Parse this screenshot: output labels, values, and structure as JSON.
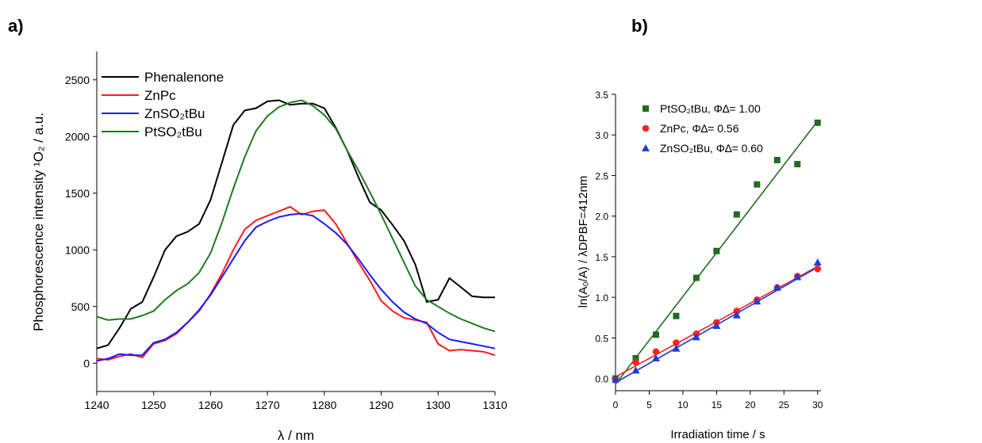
{
  "panels": {
    "a": "a)",
    "b": "b)"
  },
  "chart_data": [
    {
      "type": "line",
      "panel_label": "a)",
      "xlabel": "λ / nm",
      "ylabel": "Phosphorescence intensity ¹O₂ / a.u.",
      "xlim": [
        1240,
        1310
      ],
      "ylim": [
        -250,
        2750
      ],
      "xticks": [
        1240,
        1250,
        1260,
        1270,
        1280,
        1290,
        1300,
        1310
      ],
      "yticks": [
        0,
        500,
        1000,
        1500,
        2000,
        2500
      ],
      "legend_position": "top-left",
      "series": [
        {
          "name": "Phenalenone",
          "color": "#000000",
          "x": [
            1240,
            1242,
            1244,
            1246,
            1248,
            1250,
            1252,
            1254,
            1256,
            1258,
            1260,
            1262,
            1264,
            1266,
            1268,
            1270,
            1272,
            1274,
            1276,
            1278,
            1280,
            1282,
            1284,
            1286,
            1288,
            1290,
            1292,
            1294,
            1296,
            1298,
            1300,
            1302,
            1304,
            1306,
            1308,
            1310
          ],
          "y": [
            130,
            160,
            310,
            480,
            540,
            760,
            1000,
            1120,
            1160,
            1230,
            1440,
            1770,
            2100,
            2230,
            2250,
            2310,
            2320,
            2280,
            2290,
            2290,
            2250,
            2080,
            1880,
            1640,
            1420,
            1350,
            1220,
            1080,
            870,
            540,
            560,
            750,
            670,
            590,
            580,
            580
          ]
        },
        {
          "name": "ZnPc",
          "color": "#ff1a1a",
          "x": [
            1240,
            1242,
            1244,
            1246,
            1248,
            1250,
            1252,
            1254,
            1256,
            1258,
            1260,
            1262,
            1264,
            1266,
            1268,
            1270,
            1272,
            1274,
            1276,
            1278,
            1280,
            1282,
            1284,
            1286,
            1288,
            1290,
            1292,
            1294,
            1296,
            1298,
            1300,
            1302,
            1304,
            1306,
            1308,
            1310
          ],
          "y": [
            40,
            30,
            60,
            80,
            50,
            170,
            200,
            260,
            360,
            460,
            610,
            790,
            1000,
            1180,
            1260,
            1300,
            1340,
            1380,
            1310,
            1340,
            1350,
            1230,
            1060,
            890,
            730,
            550,
            460,
            400,
            380,
            360,
            170,
            110,
            120,
            110,
            100,
            70
          ]
        },
        {
          "name": "ZnSO₂tBu",
          "color": "#1a1aff",
          "x": [
            1240,
            1242,
            1244,
            1246,
            1248,
            1250,
            1252,
            1254,
            1256,
            1258,
            1260,
            1262,
            1264,
            1266,
            1268,
            1270,
            1272,
            1274,
            1276,
            1278,
            1280,
            1282,
            1284,
            1286,
            1288,
            1290,
            1292,
            1294,
            1296,
            1298,
            1300,
            1302,
            1304,
            1306,
            1308,
            1310
          ],
          "y": [
            20,
            40,
            80,
            70,
            70,
            180,
            210,
            270,
            360,
            470,
            600,
            760,
            920,
            1080,
            1200,
            1250,
            1290,
            1310,
            1320,
            1300,
            1230,
            1150,
            1050,
            920,
            780,
            650,
            540,
            450,
            390,
            350,
            270,
            210,
            190,
            170,
            150,
            130
          ]
        },
        {
          "name": "PtSO₂tBu",
          "color": "#1f7a1f",
          "x": [
            1240,
            1242,
            1244,
            1246,
            1248,
            1250,
            1252,
            1254,
            1256,
            1258,
            1260,
            1262,
            1264,
            1266,
            1268,
            1270,
            1272,
            1274,
            1276,
            1278,
            1280,
            1282,
            1284,
            1286,
            1288,
            1290,
            1292,
            1294,
            1296,
            1298,
            1300,
            1302,
            1304,
            1306,
            1308,
            1310
          ],
          "y": [
            410,
            380,
            390,
            390,
            420,
            460,
            560,
            640,
            700,
            800,
            970,
            1240,
            1540,
            1820,
            2050,
            2180,
            2260,
            2300,
            2320,
            2270,
            2190,
            2070,
            1880,
            1700,
            1510,
            1310,
            1100,
            890,
            680,
            560,
            500,
            440,
            390,
            350,
            310,
            280
          ]
        }
      ]
    },
    {
      "type": "scatter",
      "panel_label": "b)",
      "xlabel": "Irradiation time / s",
      "ylabel": "ln(A₀/A) / λDPBF=412nm",
      "xlim": [
        0,
        30.5
      ],
      "ylim": [
        -0.15,
        3.5
      ],
      "xticks": [
        0,
        5,
        10,
        15,
        20,
        25,
        30
      ],
      "yticks": [
        0.0,
        0.5,
        1.0,
        1.5,
        2.0,
        2.5,
        3.0,
        3.5
      ],
      "legend_position": "top-left",
      "series": [
        {
          "name": "PtSO₂tBu, Φ∆= 1.00",
          "color": "#1f6b1f",
          "marker": "square",
          "x": [
            0,
            3,
            6,
            9,
            12,
            15,
            18,
            21,
            24,
            27,
            30
          ],
          "y": [
            0.0,
            0.25,
            0.54,
            0.77,
            1.24,
            1.57,
            2.02,
            2.39,
            2.69,
            2.64,
            3.15
          ],
          "fit": [
            [
              0,
              -0.07
            ],
            [
              30,
              3.17
            ]
          ]
        },
        {
          "name": "ZnPc, Φ∆= 0.56",
          "color": "#ff2020",
          "marker": "circle",
          "x": [
            0,
            3,
            6,
            9,
            12,
            15,
            18,
            21,
            24,
            27,
            30
          ],
          "y": [
            -0.02,
            0.2,
            0.33,
            0.44,
            0.55,
            0.69,
            0.83,
            0.97,
            1.12,
            1.26,
            1.35
          ],
          "fit": [
            [
              0,
              0.02
            ],
            [
              30,
              1.38
            ]
          ]
        },
        {
          "name": "ZnSO₂tBu, Φ∆= 0.60",
          "color": "#1a3fd6",
          "marker": "triangle",
          "x": [
            0,
            3,
            6,
            9,
            12,
            15,
            18,
            21,
            24,
            27,
            30
          ],
          "y": [
            -0.01,
            0.1,
            0.25,
            0.37,
            0.51,
            0.65,
            0.78,
            0.95,
            1.12,
            1.25,
            1.43
          ],
          "fit": [
            [
              0,
              -0.05
            ],
            [
              30,
              1.37
            ]
          ]
        }
      ]
    }
  ]
}
